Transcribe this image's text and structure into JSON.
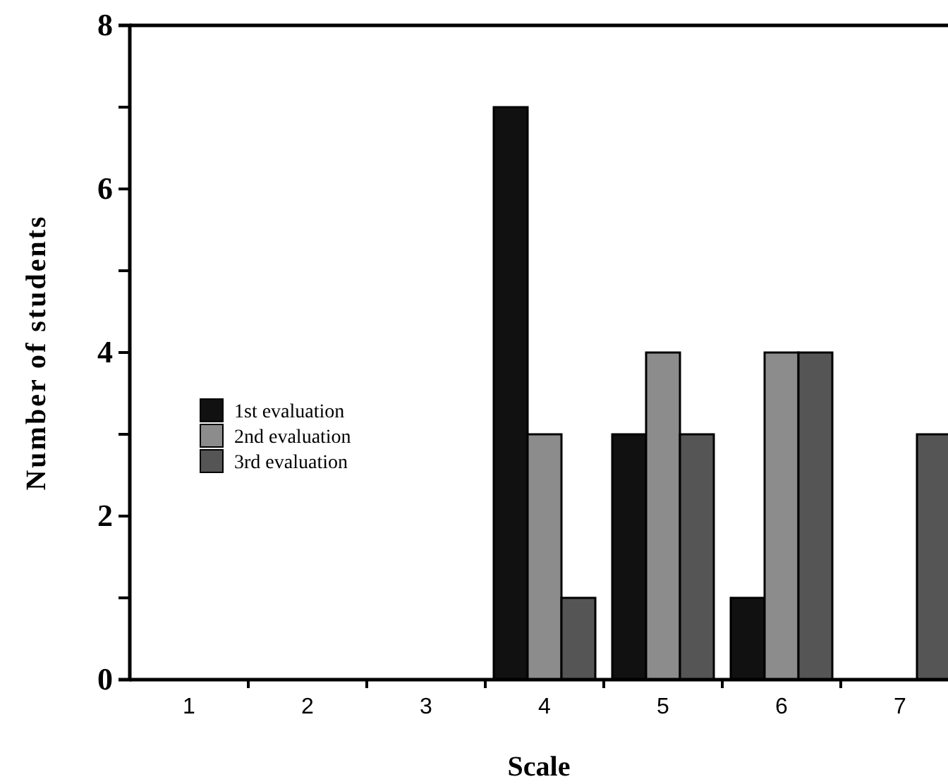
{
  "chart_data": {
    "type": "bar",
    "xlabel": "Scale",
    "ylabel": "Number of students",
    "categories": [
      "1",
      "2",
      "3",
      "4",
      "5",
      "6",
      "7"
    ],
    "series": [
      {
        "name": "1st evaluation",
        "color": "#111111",
        "values": [
          0,
          0,
          0,
          7,
          3,
          1,
          0
        ]
      },
      {
        "name": "2nd evaluation",
        "color": "#8c8c8c",
        "values": [
          0,
          0,
          0,
          3,
          4,
          4,
          0
        ]
      },
      {
        "name": "3rd evaluation",
        "color": "#555555",
        "values": [
          0,
          0,
          0,
          1,
          3,
          4,
          3
        ]
      }
    ],
    "ylim": [
      0,
      8
    ],
    "yticks": [
      0,
      {
        "value": 1,
        "label": null
      },
      2,
      {
        "value": 3,
        "label": null
      },
      4,
      {
        "value": 5,
        "label": null
      },
      6,
      {
        "value": 7,
        "label": null
      },
      8
    ],
    "grid": false,
    "legend": "left"
  }
}
